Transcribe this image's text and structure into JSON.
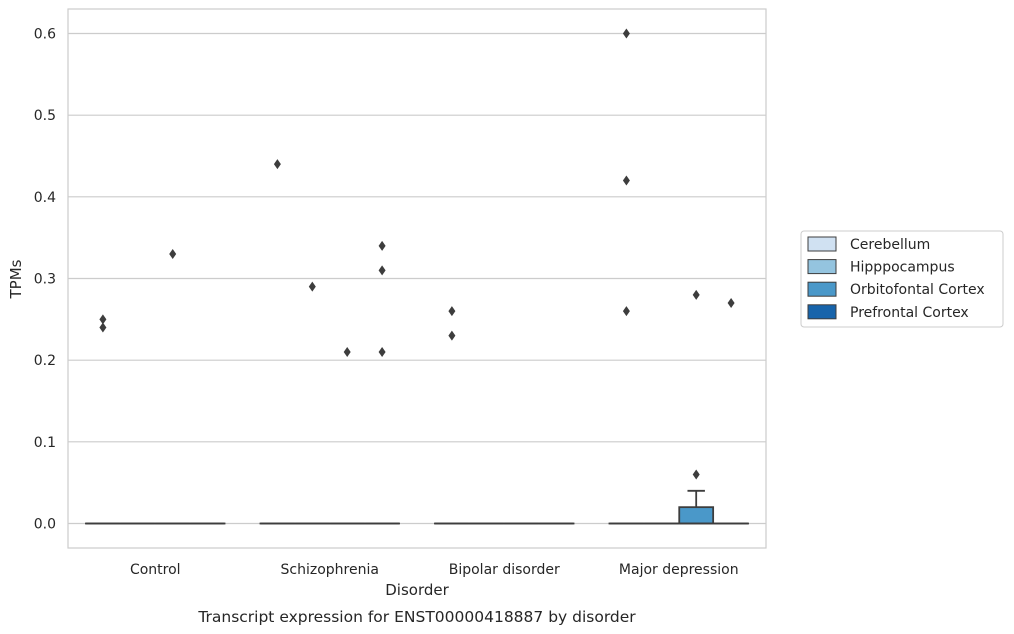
{
  "chart_data": {
    "type": "box",
    "caption": "Transcript expression for ENST00000418887 by disorder",
    "xlabel": "Disorder",
    "ylabel": "TPMs",
    "ylim": [
      -0.03,
      0.63
    ],
    "yticks": [
      0.0,
      0.1,
      0.2,
      0.3,
      0.4,
      0.5,
      0.6
    ],
    "ytick_labels": [
      "0.0",
      "0.1",
      "0.2",
      "0.3",
      "0.4",
      "0.5",
      "0.6"
    ],
    "grid": "horizontal",
    "legend_position": "right",
    "categories": [
      "Control",
      "Schizophrenia",
      "Bipolar disorder",
      "Major depression"
    ],
    "series": [
      {
        "name": "Cerebellum",
        "color": "#d0e1f2",
        "boxes": [
          {
            "q1": 0,
            "median": 0,
            "q3": 0,
            "whisker_low": 0,
            "whisker_high": 0,
            "outliers": [
              0.25,
              0.24
            ]
          },
          {
            "q1": 0,
            "median": 0,
            "q3": 0,
            "whisker_low": 0,
            "whisker_high": 0,
            "outliers": [
              0.44
            ]
          },
          {
            "q1": 0,
            "median": 0,
            "q3": 0,
            "whisker_low": 0,
            "whisker_high": 0,
            "outliers": [
              0.26,
              0.23
            ]
          },
          {
            "q1": 0,
            "median": 0,
            "q3": 0,
            "whisker_low": 0,
            "whisker_high": 0,
            "outliers": [
              0.6,
              0.42,
              0.26
            ]
          }
        ]
      },
      {
        "name": "Hipppocampus",
        "color": "#94c4df",
        "boxes": [
          {
            "q1": 0,
            "median": 0,
            "q3": 0,
            "whisker_low": 0,
            "whisker_high": 0,
            "outliers": []
          },
          {
            "q1": 0,
            "median": 0,
            "q3": 0,
            "whisker_low": 0,
            "whisker_high": 0,
            "outliers": [
              0.29
            ]
          },
          {
            "q1": 0,
            "median": 0,
            "q3": 0,
            "whisker_low": 0,
            "whisker_high": 0,
            "outliers": []
          },
          {
            "q1": 0,
            "median": 0,
            "q3": 0,
            "whisker_low": 0,
            "whisker_high": 0,
            "outliers": []
          }
        ]
      },
      {
        "name": "Orbitofontal Cortex",
        "color": "#4a98c9",
        "boxes": [
          {
            "q1": 0,
            "median": 0,
            "q3": 0,
            "whisker_low": 0,
            "whisker_high": 0,
            "outliers": [
              0.33
            ]
          },
          {
            "q1": 0,
            "median": 0,
            "q3": 0,
            "whisker_low": 0,
            "whisker_high": 0,
            "outliers": [
              0.21
            ]
          },
          {
            "q1": 0,
            "median": 0,
            "q3": 0,
            "whisker_low": 0,
            "whisker_high": 0,
            "outliers": []
          },
          {
            "q1": 0,
            "median": 0,
            "q3": 0.02,
            "whisker_low": 0,
            "whisker_high": 0.04,
            "outliers": [
              0.28,
              0.06
            ]
          }
        ]
      },
      {
        "name": "Prefrontal Cortex",
        "color": "#1764ab",
        "boxes": [
          {
            "q1": 0,
            "median": 0,
            "q3": 0,
            "whisker_low": 0,
            "whisker_high": 0,
            "outliers": []
          },
          {
            "q1": 0,
            "median": 0,
            "q3": 0,
            "whisker_low": 0,
            "whisker_high": 0,
            "outliers": [
              0.34,
              0.31,
              0.21
            ]
          },
          {
            "q1": 0,
            "median": 0,
            "q3": 0,
            "whisker_low": 0,
            "whisker_high": 0,
            "outliers": []
          },
          {
            "q1": 0,
            "median": 0,
            "q3": 0,
            "whisker_low": 0,
            "whisker_high": 0,
            "outliers": [
              0.27
            ]
          }
        ]
      }
    ]
  }
}
